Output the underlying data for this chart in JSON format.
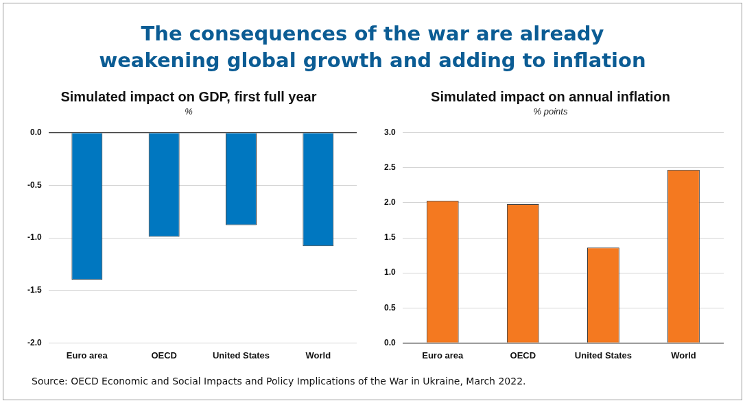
{
  "chart_data": [
    {
      "type": "other",
      "title": "The consequences of the war are already weakening global growth and adding to inflation"
    },
    {
      "type": "bar",
      "title": "Simulated impact on GDP, first full year",
      "subtitle": "%",
      "categories": [
        "Euro area",
        "OECD",
        "United States",
        "World"
      ],
      "series": [
        {
          "color": "#0077c0",
          "values": [
            -1.4,
            -0.99,
            -0.88,
            -1.08
          ]
        }
      ],
      "ylim": [
        -2,
        0
      ],
      "yticks": [
        {
          "value": -2,
          "label": "-2.0"
        },
        {
          "value": -1.5,
          "label": "-1.5"
        },
        {
          "value": -1,
          "label": "-1.0"
        },
        {
          "value": -0.5,
          "label": "-0.5"
        },
        {
          "value": 0,
          "label": "0.0"
        }
      ],
      "grid": "y",
      "legend": false
    },
    {
      "type": "bar",
      "title": "Simulated impact on annual inflation",
      "subtitle": "% points",
      "categories": [
        "Euro area",
        "OECD",
        "United States",
        "World"
      ],
      "series": [
        {
          "color": "#f47920",
          "values": [
            2.03,
            1.98,
            1.36,
            2.47
          ]
        }
      ],
      "ylim": [
        0,
        3
      ],
      "yticks": [
        {
          "value": 0,
          "label": "0.0"
        },
        {
          "value": 0.5,
          "label": "0.5"
        },
        {
          "value": 1,
          "label": "1.0"
        },
        {
          "value": 1.5,
          "label": "1.5"
        },
        {
          "value": 2,
          "label": "2.0"
        },
        {
          "value": 2.5,
          "label": "2.5"
        },
        {
          "value": 3,
          "label": "3.0"
        }
      ],
      "grid": "y",
      "legend": false,
      "annotations": [
        "Source: OECD Economic and Social Impacts and Policy Implications of the War in Ukraine, March 2022."
      ]
    }
  ]
}
